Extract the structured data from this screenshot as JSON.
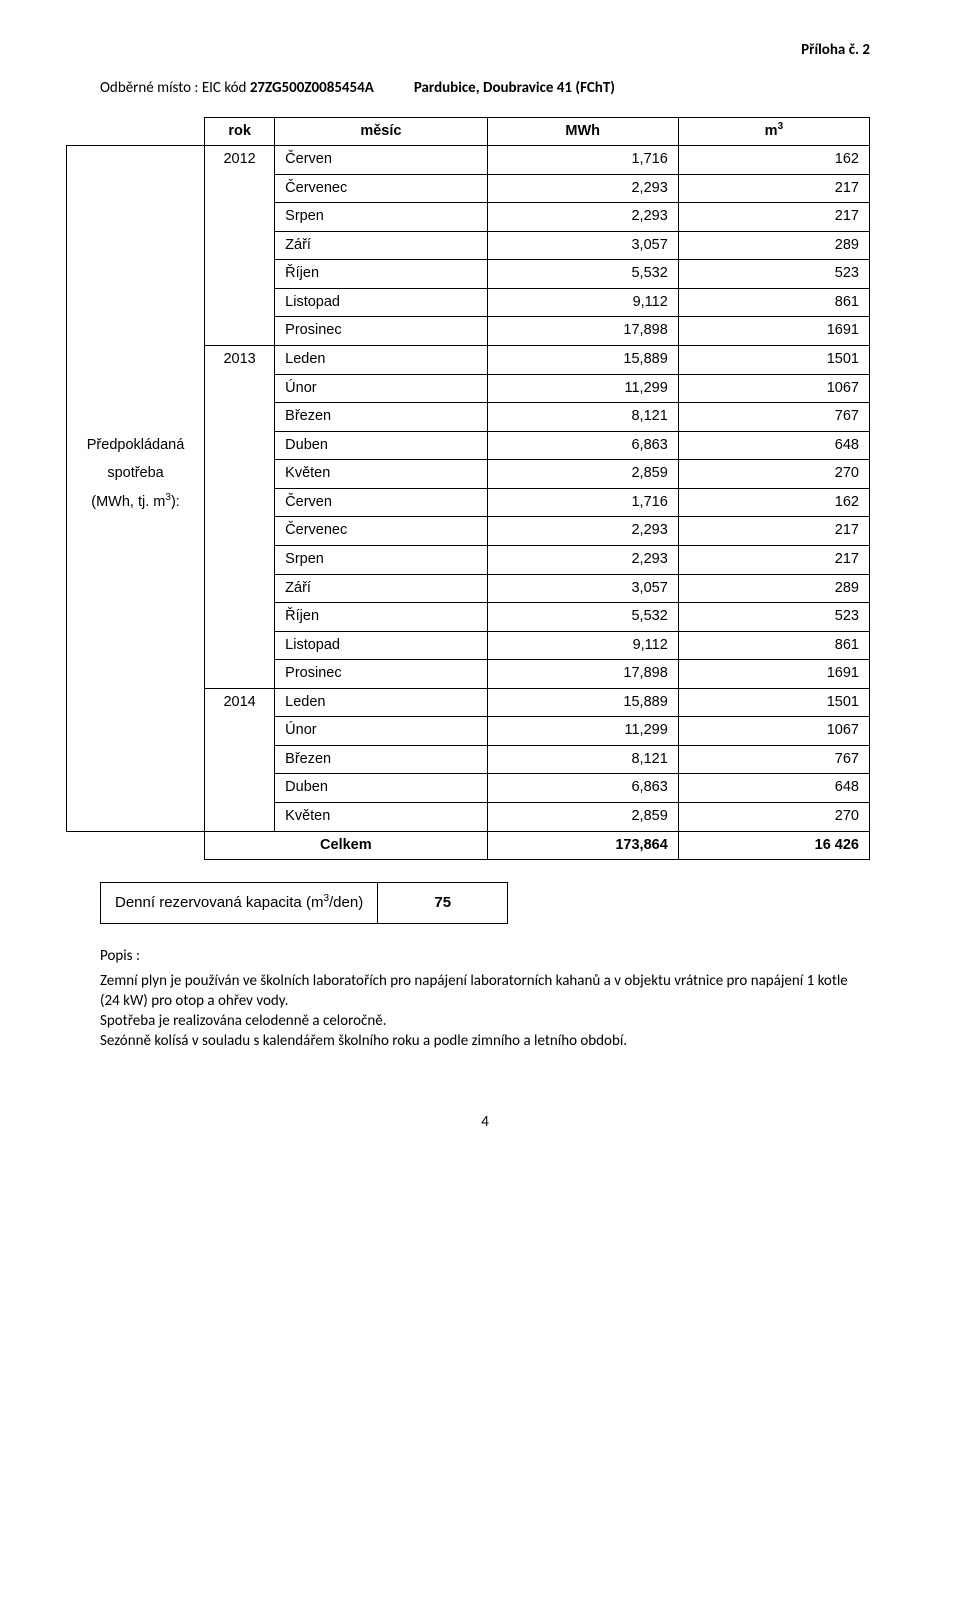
{
  "topRight": "Příloha č. 2",
  "header": {
    "left_prefix": "Odběrné místo : EIC kód ",
    "left_code": "27ZG500Z0085454A",
    "right": "Pardubice, Doubravice 41 (FChT)"
  },
  "sideLabel": {
    "line1": "Předpokládaná",
    "line2": "spotřeba",
    "line3_pre": "(MWh, tj. m",
    "line3_sup": "3",
    "line3_post": "):"
  },
  "columns": {
    "rok": "rok",
    "mesic": "měsíc",
    "mwh": "MWh",
    "m3_pre": "m",
    "m3_sup": "3"
  },
  "years": {
    "y2012": "2012",
    "y2013": "2013",
    "y2014": "2014"
  },
  "rows": [
    {
      "m": "Červen",
      "mwh": "1,716",
      "m3": "162"
    },
    {
      "m": "Červenec",
      "mwh": "2,293",
      "m3": "217"
    },
    {
      "m": "Srpen",
      "mwh": "2,293",
      "m3": "217"
    },
    {
      "m": "Září",
      "mwh": "3,057",
      "m3": "289"
    },
    {
      "m": "Říjen",
      "mwh": "5,532",
      "m3": "523"
    },
    {
      "m": "Listopad",
      "mwh": "9,112",
      "m3": "861"
    },
    {
      "m": "Prosinec",
      "mwh": "17,898",
      "m3": "1691"
    },
    {
      "m": "Leden",
      "mwh": "15,889",
      "m3": "1501"
    },
    {
      "m": "Únor",
      "mwh": "11,299",
      "m3": "1067"
    },
    {
      "m": "Březen",
      "mwh": "8,121",
      "m3": "767"
    },
    {
      "m": "Duben",
      "mwh": "6,863",
      "m3": "648"
    },
    {
      "m": "Květen",
      "mwh": "2,859",
      "m3": "270"
    },
    {
      "m": "Červen",
      "mwh": "1,716",
      "m3": "162"
    },
    {
      "m": "Červenec",
      "mwh": "2,293",
      "m3": "217"
    },
    {
      "m": "Srpen",
      "mwh": "2,293",
      "m3": "217"
    },
    {
      "m": "Září",
      "mwh": "3,057",
      "m3": "289"
    },
    {
      "m": "Říjen",
      "mwh": "5,532",
      "m3": "523"
    },
    {
      "m": "Listopad",
      "mwh": "9,112",
      "m3": "861"
    },
    {
      "m": "Prosinec",
      "mwh": "17,898",
      "m3": "1691"
    },
    {
      "m": "Leden",
      "mwh": "15,889",
      "m3": "1501"
    },
    {
      "m": "Únor",
      "mwh": "11,299",
      "m3": "1067"
    },
    {
      "m": "Březen",
      "mwh": "8,121",
      "m3": "767"
    },
    {
      "m": "Duben",
      "mwh": "6,863",
      "m3": "648"
    },
    {
      "m": "Květen",
      "mwh": "2,859",
      "m3": "270"
    }
  ],
  "total": {
    "label": "Celkem",
    "mwh": "173,864",
    "m3": "16 426"
  },
  "capacity": {
    "label_pre": "Denní rezervovaná kapacita (m",
    "label_sup": "3",
    "label_post": "/den)",
    "value": "75"
  },
  "desc": {
    "title": "Popis :",
    "p1": "Zemní plyn je používán ve školních laboratořích pro napájení laboratorních kahanů a v objektu vrátnice pro napájení 1 kotle (24 kW) pro otop a ohřev vody.",
    "p2": "Spotřeba je realizována celodenně a celoročně.",
    "p3": "Sezónně kolísá v souladu s kalendářem školního roku a podle zimního a letního období."
  },
  "pageNumber": "4"
}
